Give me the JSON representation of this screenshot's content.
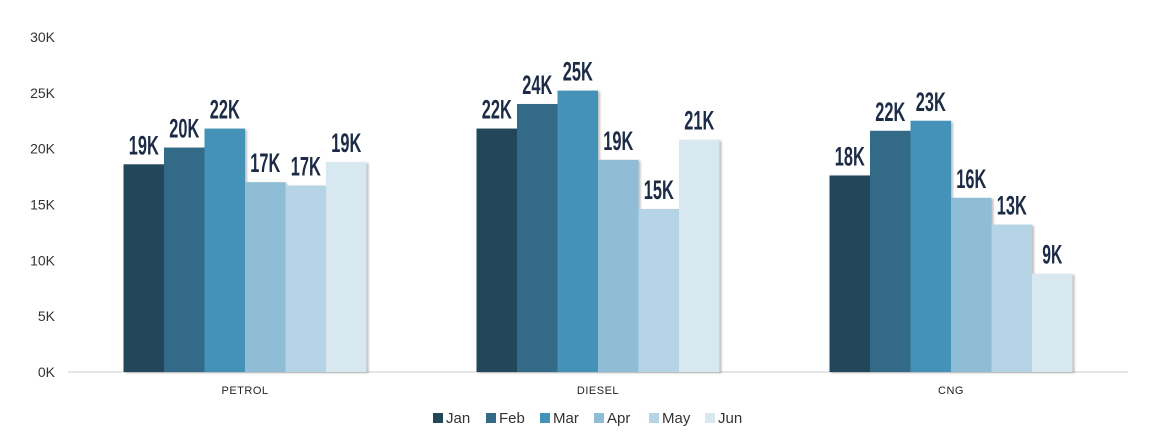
{
  "chart_data": {
    "type": "bar",
    "title": "",
    "xlabel": "",
    "ylabel": "",
    "ylim": [
      0,
      30000
    ],
    "yticks": [
      0,
      5000,
      10000,
      15000,
      20000,
      25000,
      30000
    ],
    "ytick_labels": [
      "0K",
      "5K",
      "10K",
      "15K",
      "20K",
      "25K",
      "30K"
    ],
    "categories": [
      "PETROL",
      "DIESEL",
      "CNG"
    ],
    "grid": false,
    "legend_position": "bottom-center",
    "series": [
      {
        "name": "Jan",
        "color": "#22475a",
        "values": [
          18600,
          21800,
          17600
        ],
        "labels": [
          "19K",
          "22K",
          "18K"
        ]
      },
      {
        "name": "Feb",
        "color": "#336b87",
        "values": [
          20100,
          24000,
          21600
        ],
        "labels": [
          "20K",
          "24K",
          "22K"
        ]
      },
      {
        "name": "Mar",
        "color": "#4592b8",
        "values": [
          21800,
          25200,
          22500
        ],
        "labels": [
          "22K",
          "25K",
          "23K"
        ]
      },
      {
        "name": "Apr",
        "color": "#8fbdd6",
        "values": [
          17000,
          19000,
          15600
        ],
        "labels": [
          "17K",
          "19K",
          "16K"
        ]
      },
      {
        "name": "May",
        "color": "#b5d5e6",
        "values": [
          16700,
          14600,
          13200
        ],
        "labels": [
          "17K",
          "15K",
          "13K"
        ]
      },
      {
        "name": "Jun",
        "color": "#d8e8f0",
        "values": [
          18800,
          20800,
          8800
        ],
        "labels": [
          "19K",
          "21K",
          "9K"
        ]
      }
    ]
  }
}
